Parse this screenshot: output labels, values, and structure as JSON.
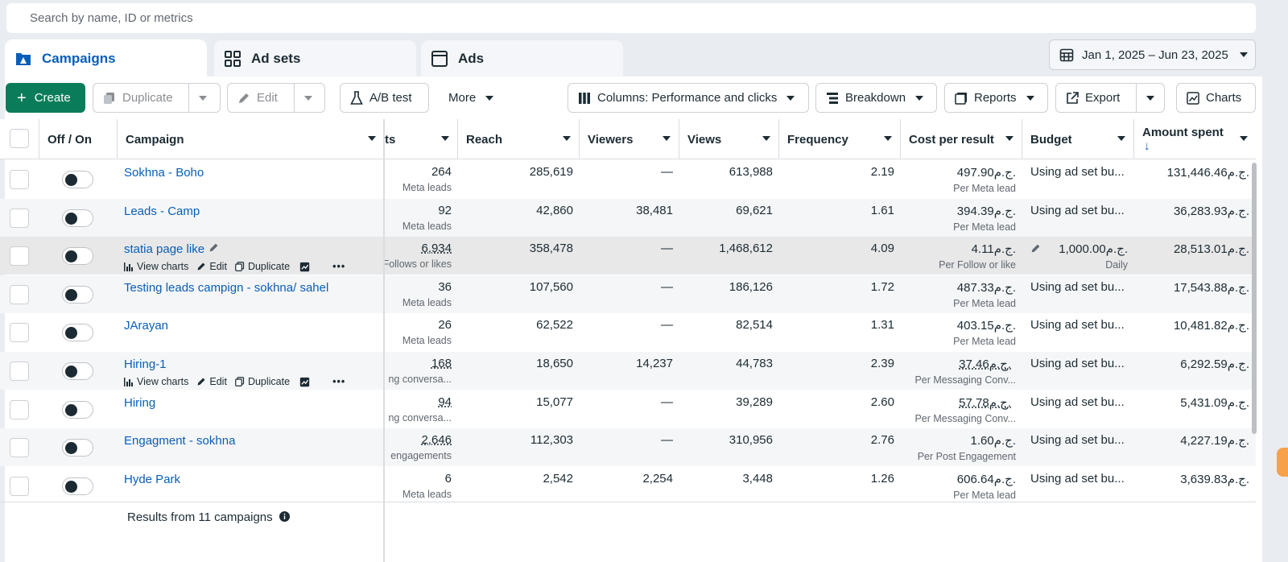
{
  "search": {
    "placeholder": "Search by name, ID or metrics"
  },
  "tabs": [
    {
      "label": "Campaigns",
      "icon": "campaigns-icon"
    },
    {
      "label": "Ad sets",
      "icon": "adsets-grid-icon"
    },
    {
      "label": "Ads",
      "icon": "ads-window-icon"
    }
  ],
  "date_range": "Jan 1, 2025 – Jun 23, 2025",
  "toolbar": {
    "create": "Create",
    "duplicate": "Duplicate",
    "edit": "Edit",
    "ab_test": "A/B test",
    "more": "More",
    "columns": "Columns: Performance and clicks",
    "breakdown": "Breakdown",
    "reports": "Reports",
    "export": "Export",
    "charts": "Charts"
  },
  "columns": {
    "off_on": "Off / On",
    "campaign": "Campaign",
    "results": "ts",
    "reach": "Reach",
    "viewers": "Viewers",
    "views": "Views",
    "frequency": "Frequency",
    "cost_per_result": "Cost per result",
    "budget": "Budget",
    "amount_spent": "Amount spent"
  },
  "row_actions": {
    "view_charts": "View charts",
    "edit": "Edit",
    "duplicate": "Duplicate"
  },
  "rows": [
    {
      "name": "Sokhna - Boho",
      "results": "264",
      "results_type": "Meta leads",
      "reach": "285,619",
      "viewers": "—",
      "views": "613,988",
      "frequency": "2.19",
      "cost": "497.90ج.م.",
      "cost_type": "Per Meta lead",
      "budget": "Using ad set bu...",
      "budget_sub": "",
      "spent": "131,446.46ج.م."
    },
    {
      "name": "Leads - Camp",
      "results": "92",
      "results_type": "Meta leads",
      "reach": "42,860",
      "viewers": "38,481",
      "views": "69,621",
      "frequency": "1.61",
      "cost": "394.39ج.م.",
      "cost_type": "Per Meta lead",
      "budget": "Using ad set bu...",
      "budget_sub": "",
      "spent": "36,283.93ج.م."
    },
    {
      "name": "statia page like",
      "results": "6,934",
      "results_type": "Follows or likes",
      "reach": "358,478",
      "viewers": "—",
      "views": "1,468,612",
      "frequency": "4.09",
      "cost": "4.11ج.م.",
      "cost_type": "Per Follow or like",
      "budget": "1,000.00ج.م.",
      "budget_sub": "Daily",
      "spent": "28,513.01ج.م."
    },
    {
      "name": "Testing leads campign - sokhna/ sahel",
      "results": "36",
      "results_type": "Meta leads",
      "reach": "107,560",
      "viewers": "—",
      "views": "186,126",
      "frequency": "1.72",
      "cost": "487.33ج.م.",
      "cost_type": "Per Meta lead",
      "budget": "Using ad set bu...",
      "budget_sub": "",
      "spent": "17,543.88ج.م."
    },
    {
      "name": "JArayan",
      "results": "26",
      "results_type": "Meta leads",
      "reach": "62,522",
      "viewers": "—",
      "views": "82,514",
      "frequency": "1.31",
      "cost": "403.15ج.م.",
      "cost_type": "Per Meta lead",
      "budget": "Using ad set bu...",
      "budget_sub": "",
      "spent": "10,481.82ج.م."
    },
    {
      "name": "Hiring-1",
      "results": "168",
      "results_type": "ng conversa...",
      "reach": "18,650",
      "viewers": "14,237",
      "views": "44,783",
      "frequency": "2.39",
      "cost": "37.46ج.م.",
      "cost_type": "Per Messaging Conv...",
      "budget": "Using ad set bu...",
      "budget_sub": "",
      "spent": "6,292.59ج.م."
    },
    {
      "name": "Hiring",
      "results": "94",
      "results_type": "ng conversa...",
      "reach": "15,077",
      "viewers": "—",
      "views": "39,289",
      "frequency": "2.60",
      "cost": "57.78ج.م.",
      "cost_type": "Per Messaging Conv...",
      "budget": "Using ad set bu...",
      "budget_sub": "",
      "spent": "5,431.09ج.م."
    },
    {
      "name": "Engagment - sokhna",
      "results": "2,646",
      "results_type": "engagements",
      "reach": "112,303",
      "viewers": "—",
      "views": "310,956",
      "frequency": "2.76",
      "cost": "1.60ج.م.",
      "cost_type": "Per Post Engagement",
      "budget": "Using ad set bu...",
      "budget_sub": "",
      "spent": "4,227.19ج.م."
    },
    {
      "name": "Hyde Park",
      "results": "6",
      "results_type": "Meta leads",
      "reach": "2,542",
      "viewers": "2,254",
      "views": "3,448",
      "frequency": "1.26",
      "cost": "606.64ج.م.",
      "cost_type": "Per Meta lead",
      "budget": "Using ad set bu...",
      "budget_sub": "",
      "spent": "3,639.83ج.م."
    }
  ],
  "footer": {
    "results": "Results from 11 campaigns"
  },
  "colors": {
    "accent": "#0a5eb8",
    "create": "#0a7c59"
  }
}
